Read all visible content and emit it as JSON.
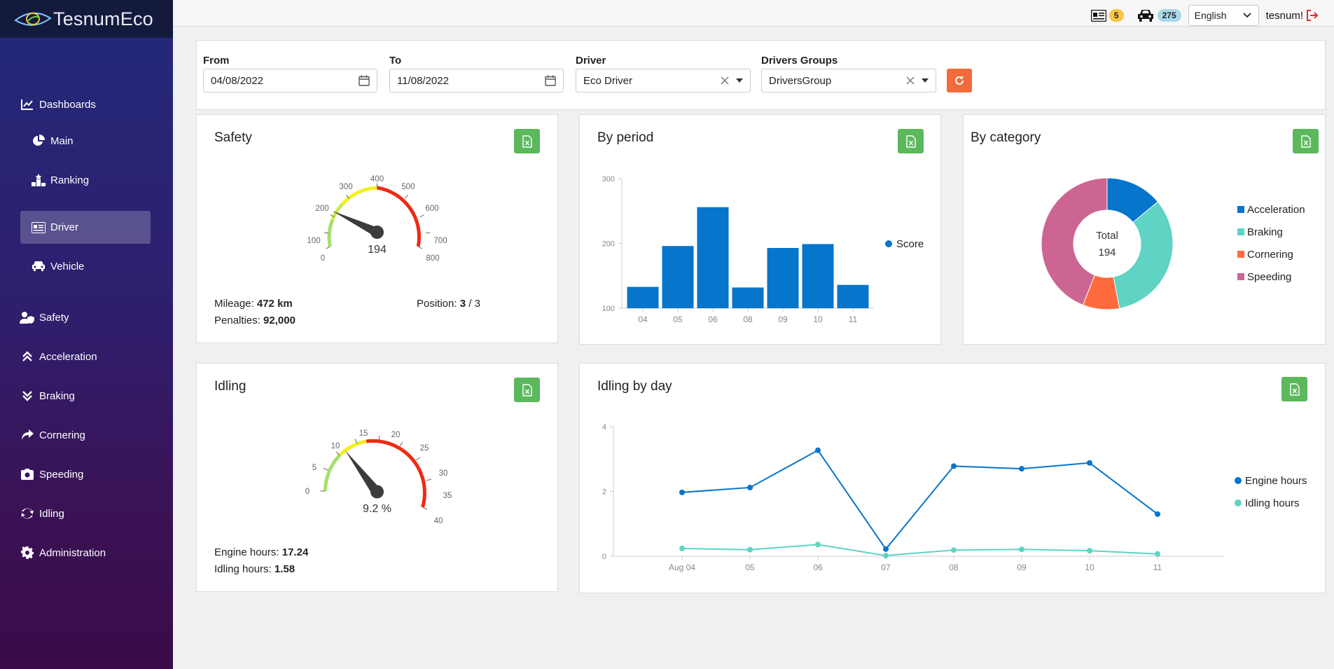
{
  "brand": {
    "name": "TesnumEco"
  },
  "sidebar": {
    "items": [
      {
        "label": "Dashboards",
        "icon": "line-chart-icon"
      },
      {
        "label": "Main",
        "icon": "pie-chart-icon"
      },
      {
        "label": "Ranking",
        "icon": "podium-icon"
      },
      {
        "label": "Driver",
        "icon": "id-card-icon",
        "active": true
      },
      {
        "label": "Vehicle",
        "icon": "car-icon"
      },
      {
        "label": "Safety",
        "icon": "user-shield-icon"
      },
      {
        "label": "Acceleration",
        "icon": "chevrons-up-icon"
      },
      {
        "label": "Braking",
        "icon": "chevrons-down-icon"
      },
      {
        "label": "Cornering",
        "icon": "share-arrow-icon"
      },
      {
        "label": "Speeding",
        "icon": "camera-icon"
      },
      {
        "label": "Idling",
        "icon": "recycle-icon"
      },
      {
        "label": "Administration",
        "icon": "gear-icon"
      }
    ]
  },
  "topbar": {
    "drivers_count": "5",
    "vehicles_count": "275",
    "language": "English",
    "user": "tesnum!"
  },
  "filters": {
    "from_label": "From",
    "from_value": "04/08/2022",
    "to_label": "To",
    "to_value": "11/08/2022",
    "driver_label": "Driver",
    "driver_value": "Eco Driver",
    "groups_label": "Drivers Groups",
    "groups_value": "DriversGroup"
  },
  "safety": {
    "title": "Safety",
    "gauge_value": "194",
    "ticks": [
      "0",
      "100",
      "200",
      "300",
      "400",
      "500",
      "600",
      "700",
      "800"
    ],
    "mileage_label": "Mileage:",
    "mileage_value": "472 km",
    "penalties_label": "Penalties:",
    "penalties_value": "92,000",
    "position_label": "Position:",
    "position_value": "3",
    "position_total": " / 3"
  },
  "idling": {
    "title": "Idling",
    "gauge_value": "9.2 %",
    "ticks": [
      "0",
      "5",
      "10",
      "15",
      "20",
      "25",
      "30",
      "35",
      "40"
    ],
    "engine_label": "Engine hours:",
    "engine_value": "17.24",
    "idling_label": "Idling hours:",
    "idling_value": "1.58"
  },
  "by_period": {
    "title": "By period"
  },
  "by_category": {
    "title": "By category",
    "center_label": "Total",
    "center_value": "194"
  },
  "idling_by_day": {
    "title": "Idling by day"
  },
  "colors": {
    "blue": "#0675cc",
    "teal": "#5fd3c4",
    "orange": "#ff6b3d",
    "pink": "#cd6593",
    "green": "#5cb85c"
  },
  "chart_data": [
    {
      "type": "bar",
      "categories": [
        "04",
        "05",
        "06",
        "08",
        "09",
        "10",
        "11"
      ],
      "series": [
        {
          "name": "Score",
          "values": [
            133,
            196,
            256,
            132,
            193,
            199,
            136
          ]
        }
      ],
      "ylim": [
        100,
        300
      ],
      "yticks": [
        "100",
        "200",
        "300"
      ],
      "legend": "right"
    },
    {
      "type": "pie",
      "labels": [
        "Acceleration",
        "Braking",
        "Cornering",
        "Speeding"
      ],
      "values": [
        14,
        33,
        9,
        44
      ],
      "legend": "right"
    },
    {
      "type": "line",
      "x": [
        "Aug 04",
        "05",
        "06",
        "07",
        "08",
        "09",
        "10",
        "11"
      ],
      "series": [
        {
          "name": "Engine hours",
          "values": [
            1.97,
            2.12,
            3.27,
            0.22,
            2.78,
            2.7,
            2.88,
            1.3
          ]
        },
        {
          "name": "Idling hours",
          "values": [
            0.24,
            0.2,
            0.36,
            0.02,
            0.19,
            0.21,
            0.17,
            0.07
          ]
        }
      ],
      "ylim": [
        0,
        4
      ],
      "yticks": [
        "0",
        "2",
        "4"
      ],
      "legend": "right"
    }
  ]
}
